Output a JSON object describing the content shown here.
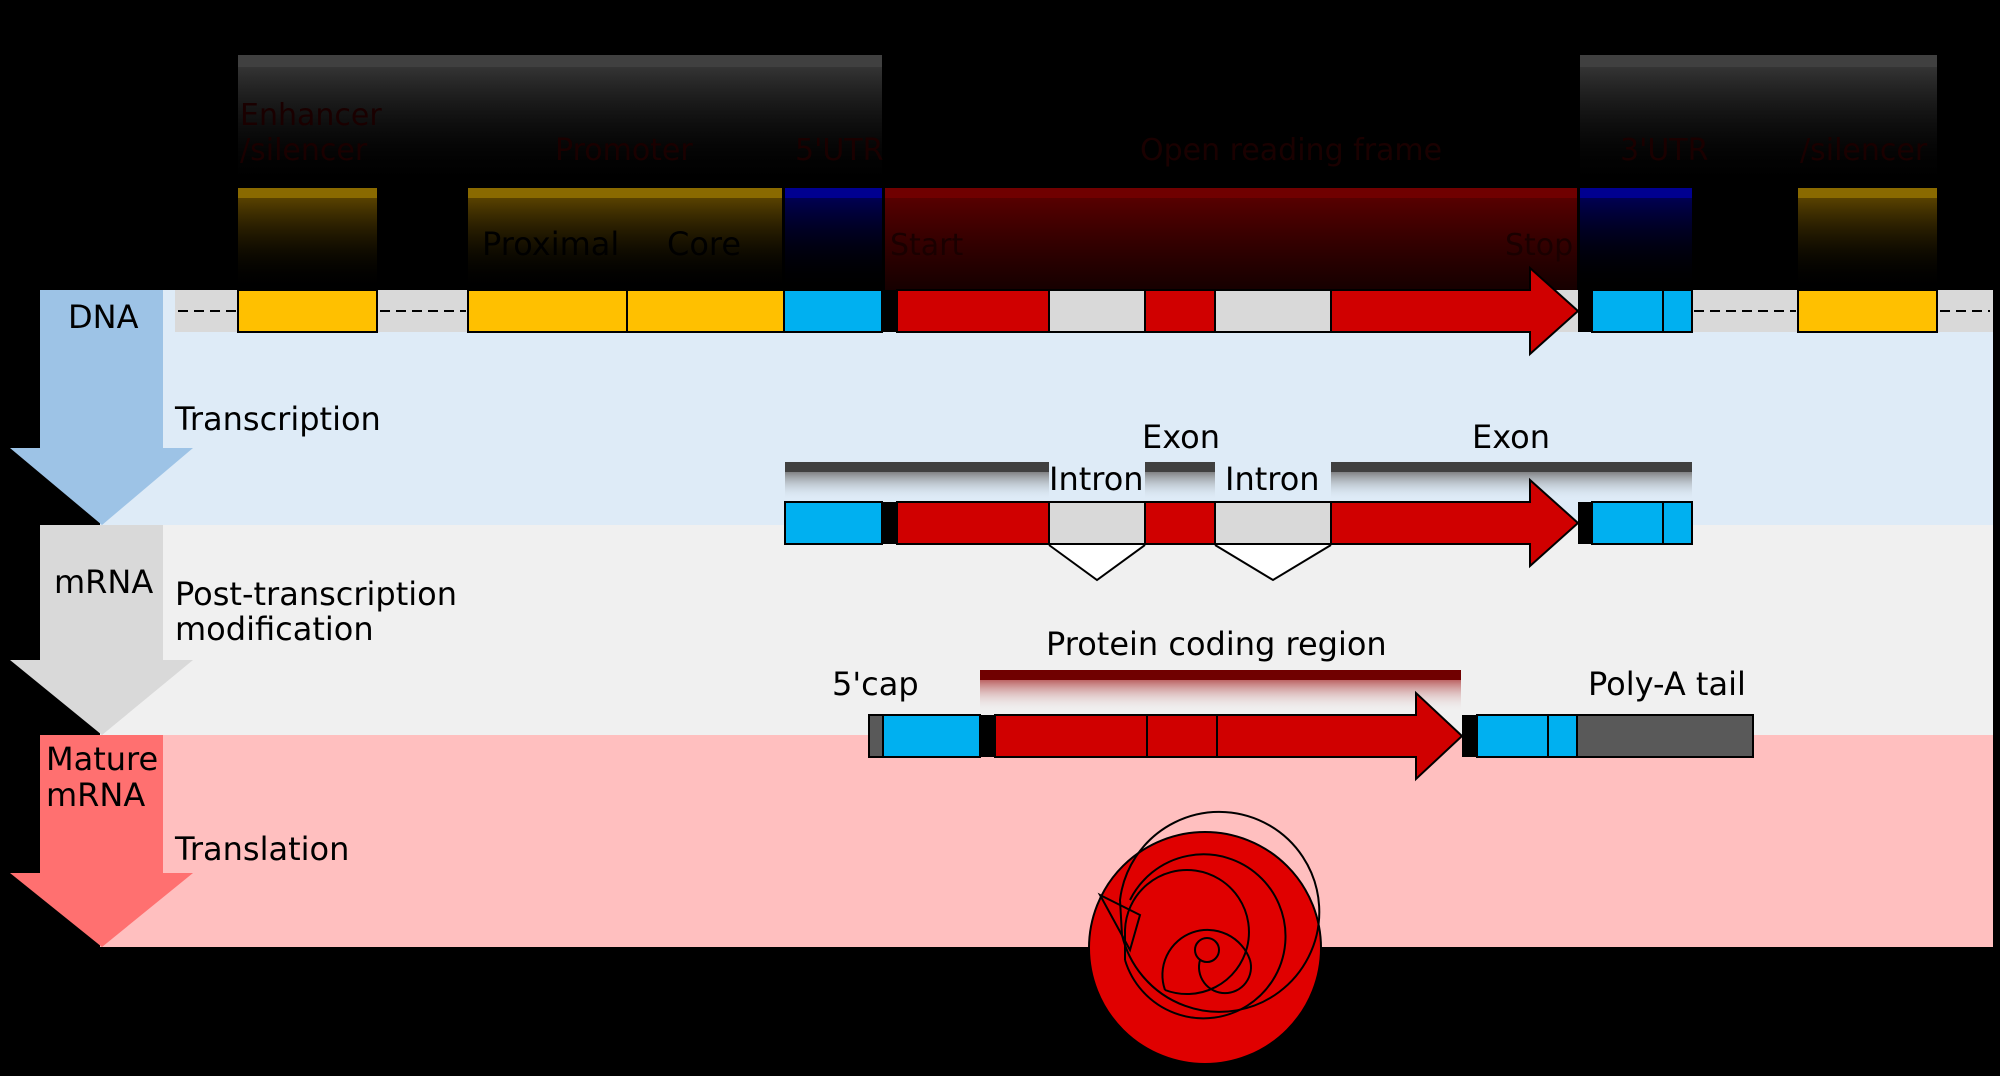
{
  "labels": {
    "enhancer_silencer_line1": "Enhancer",
    "enhancer_silencer_line2": "/silencer",
    "promoter": "Promoter",
    "utr5": "5'UTR",
    "orf": "Open reading frame",
    "utr3": "3'UTR",
    "enhancer_silencer_right": "/silencer",
    "proximal": "Proximal",
    "core": "Core",
    "start": "Start",
    "stop": "Stop",
    "dna": "DNA",
    "transcription": "Transcription",
    "exon1": "Exon",
    "exon2": "Exon",
    "exon3": "Exon",
    "intron1": "Intron",
    "intron2": "Intron",
    "mrna": "mRNA",
    "post_line1": "Post-transcription",
    "post_line2": "modification",
    "five_cap": "5'cap",
    "protein_coding_region": "Protein coding region",
    "poly_a_tail": "Poly-A tail",
    "mature_line1": "Mature",
    "mature_line2": "mRNA",
    "translation": "Translation"
  },
  "colors": {
    "yellow_region": "#ffc000",
    "utr_blue": "#00b0f0",
    "coding_red": "#d00000",
    "intron_grey": "#d9d9d9",
    "poly_a": "#595959",
    "band_dna": "#deebf7",
    "band_mrna": "#f0f0f0",
    "band_mature": "#ffbfbf",
    "arrow_dna": "#9dc3e6",
    "arrow_mrna": "#d9d9d9",
    "arrow_mature": "#ff7070",
    "protein": "#e00000"
  }
}
